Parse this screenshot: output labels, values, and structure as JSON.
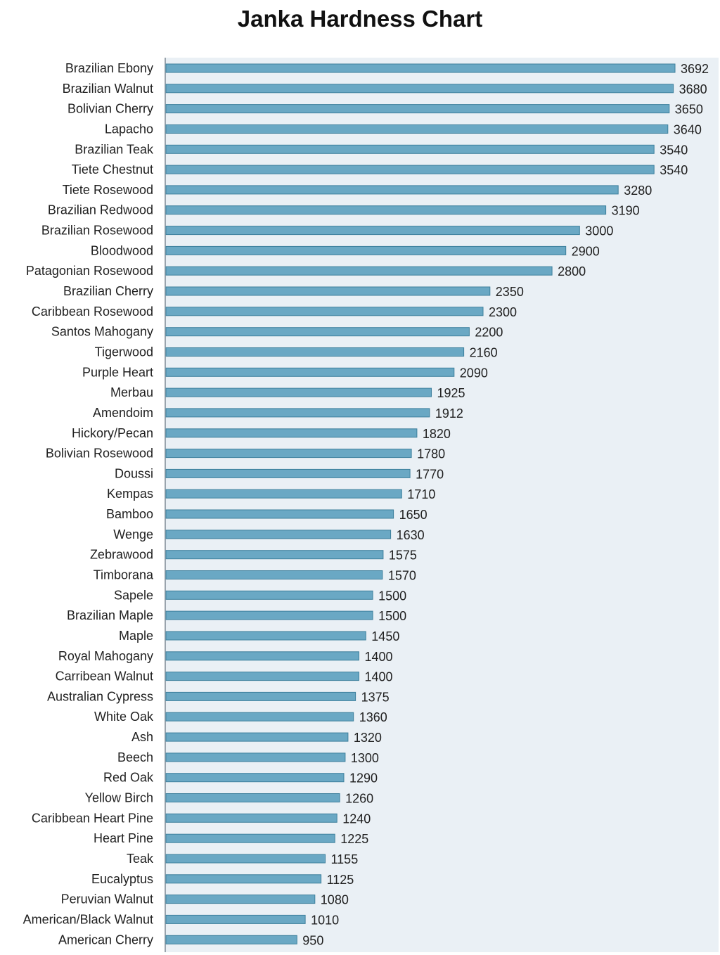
{
  "chart_data": {
    "type": "bar",
    "orientation": "horizontal",
    "title": "Janka Hardness Chart",
    "xlabel": "",
    "ylabel": "",
    "xlim": [
      0,
      3850
    ],
    "grid": false,
    "legend": "none",
    "bar_color": "#6aa8c4",
    "bar_edge_color": "#3d7f9c",
    "categories": [
      "Brazilian Ebony",
      "Brazilian Walnut",
      "Bolivian Cherry",
      "Lapacho",
      "Brazilian Teak",
      "Tiete Chestnut",
      "Tiete Rosewood",
      "Brazilian Redwood",
      "Brazilian Rosewood",
      "Bloodwood",
      "Patagonian Rosewood",
      "Brazilian Cherry",
      "Caribbean Rosewood",
      "Santos Mahogany",
      "Tigerwood",
      "Purple Heart",
      "Merbau",
      "Amendoim",
      "Hickory/Pecan",
      "Bolivian Rosewood",
      "Doussi",
      "Kempas",
      "Bamboo",
      "Wenge",
      "Zebrawood",
      "Timborana",
      "Sapele",
      "Brazilian Maple",
      "Maple",
      "Royal Mahogany",
      "Carribean Walnut",
      "Australian Cypress",
      "White Oak",
      "Ash",
      "Beech",
      "Red Oak",
      "Yellow Birch",
      "Caribbean Heart Pine",
      "Heart Pine",
      "Teak",
      "Eucalyptus",
      "Peruvian Walnut",
      "American/Black Walnut",
      "American Cherry"
    ],
    "values": [
      3692,
      3680,
      3650,
      3640,
      3540,
      3540,
      3280,
      3190,
      3000,
      2900,
      2800,
      2350,
      2300,
      2200,
      2160,
      2090,
      1925,
      1912,
      1820,
      1780,
      1770,
      1710,
      1650,
      1630,
      1575,
      1570,
      1500,
      1500,
      1450,
      1400,
      1400,
      1375,
      1360,
      1320,
      1300,
      1290,
      1260,
      1240,
      1225,
      1155,
      1125,
      1080,
      1010,
      950
    ]
  }
}
